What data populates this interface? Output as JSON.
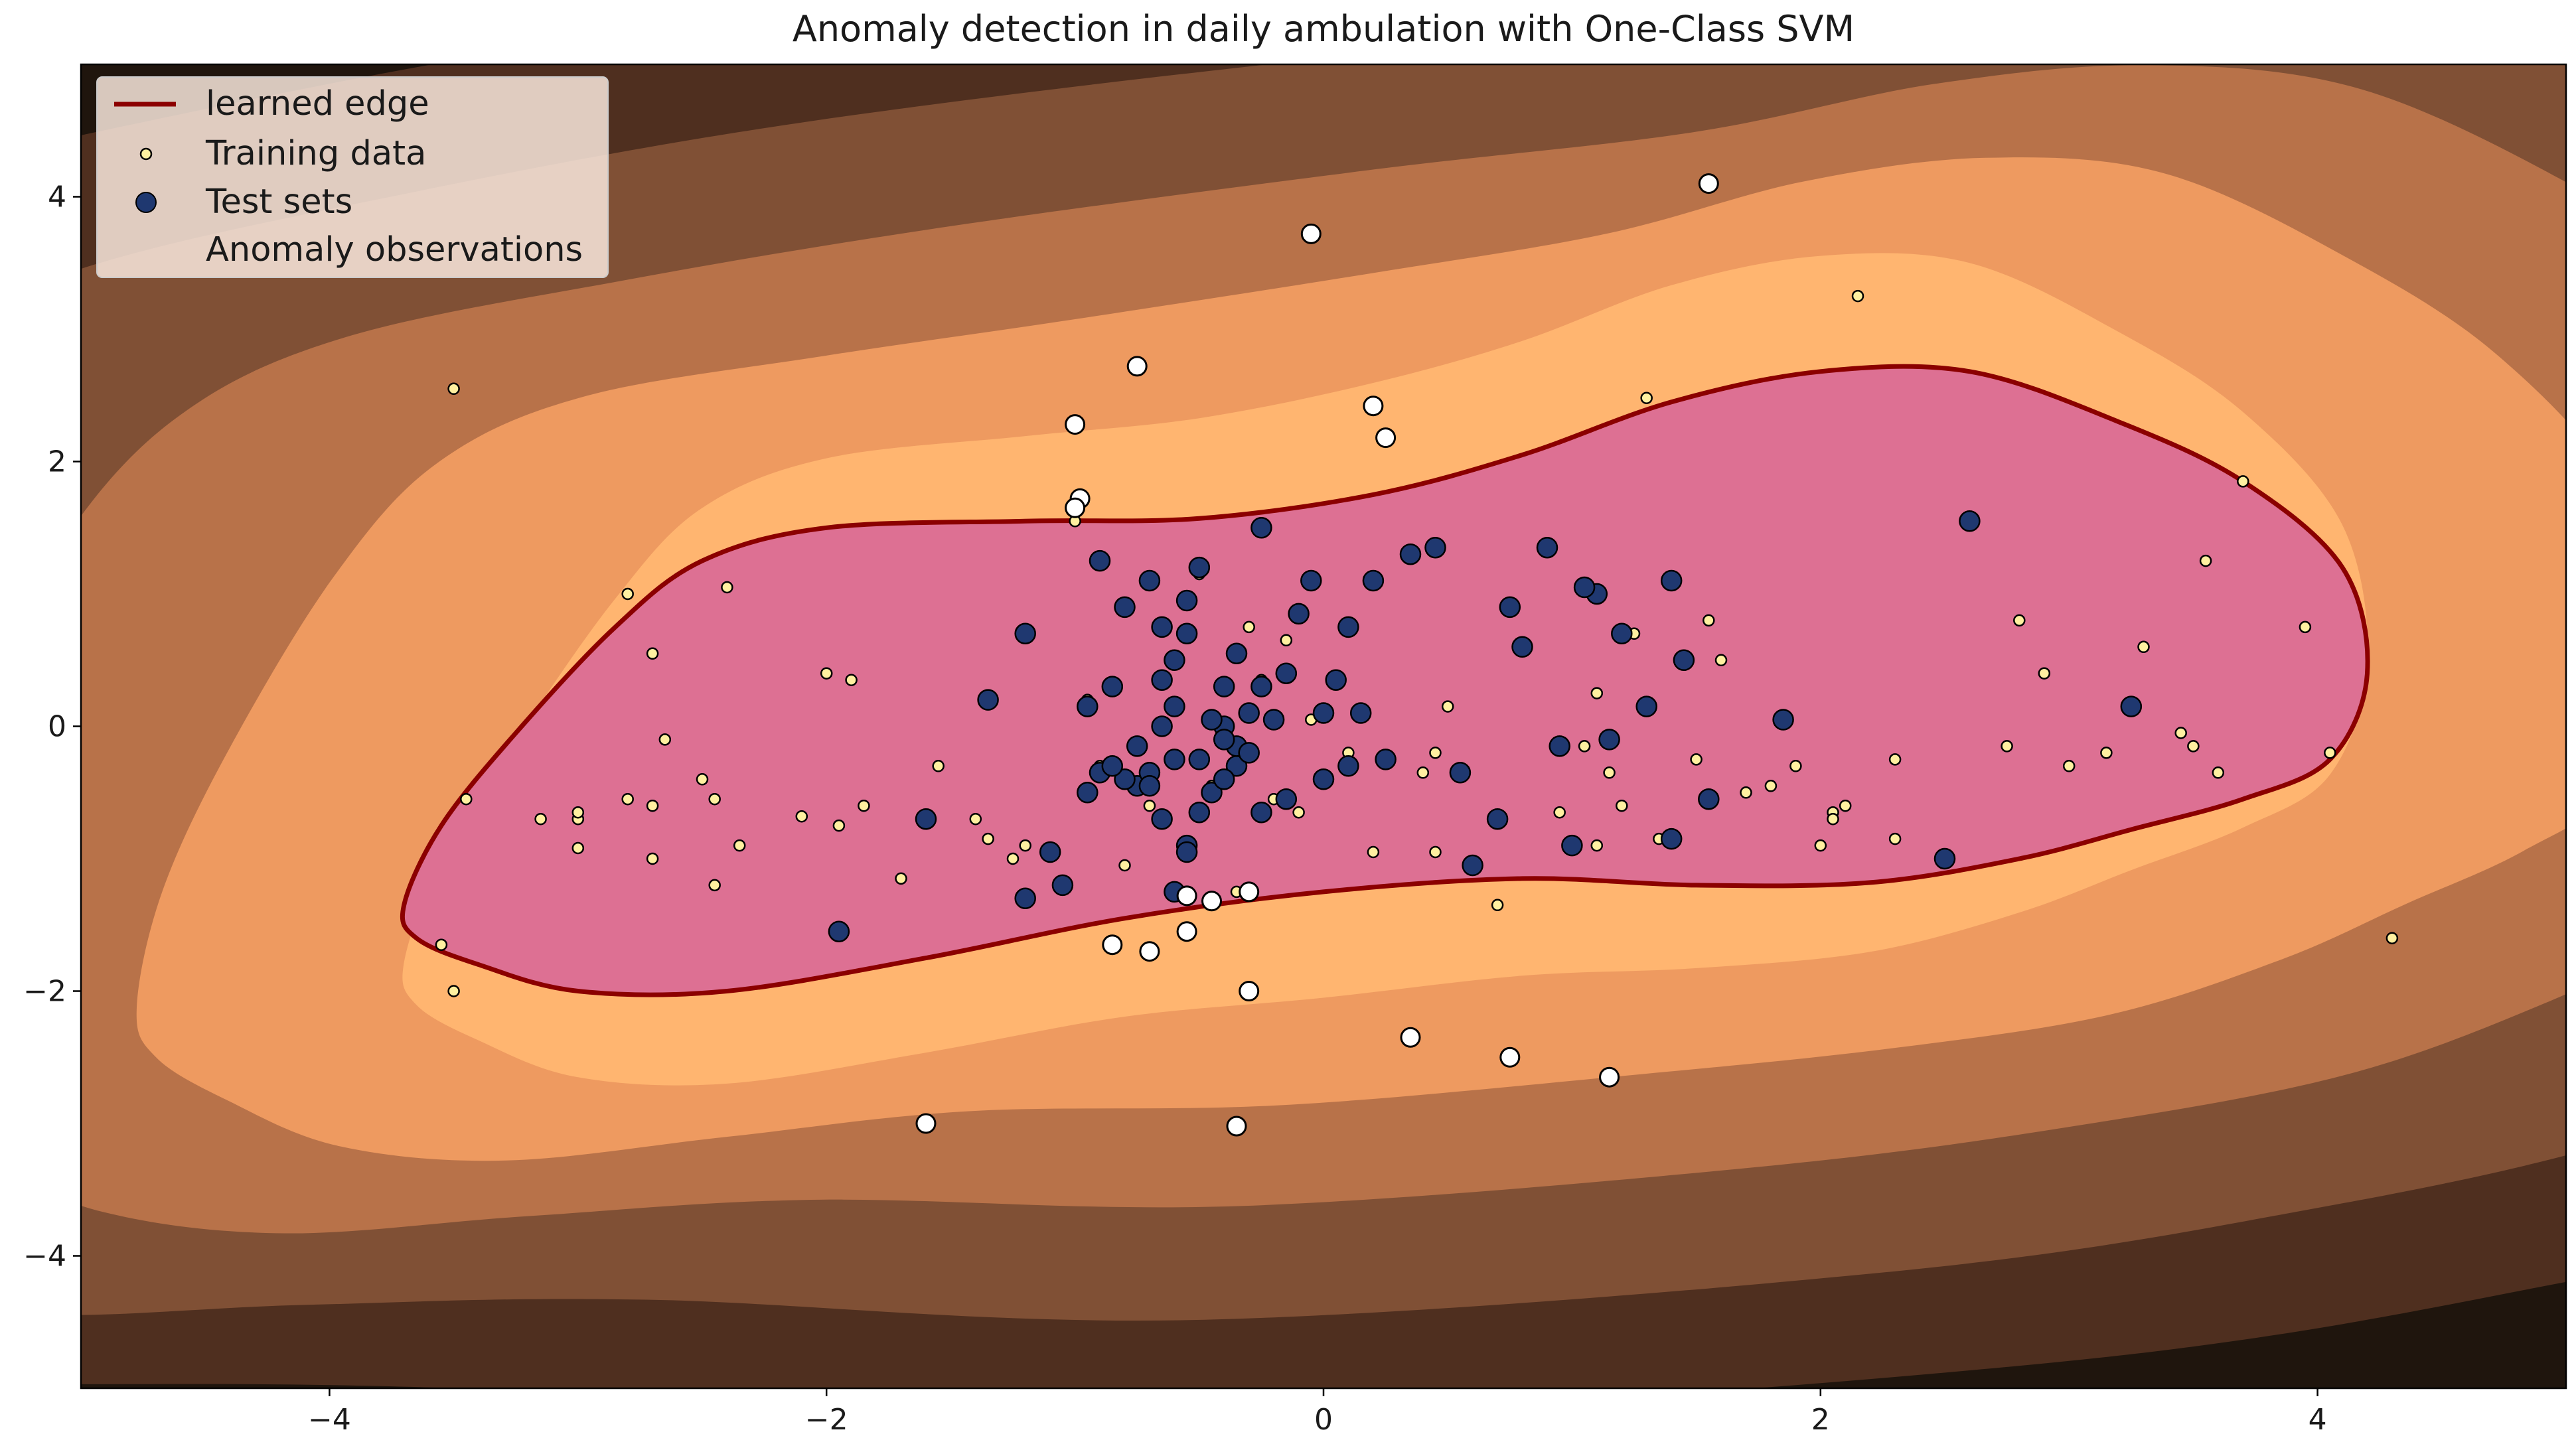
{
  "chart_data": {
    "type": "scatter",
    "title": "Anomaly detection in daily ambulation with One-Class SVM",
    "xlabel": "",
    "ylabel": "",
    "xlim": [
      -5,
      5
    ],
    "ylim": [
      -5,
      5
    ],
    "x_ticks": [
      -4,
      -2,
      0,
      2,
      4
    ],
    "y_ticks": [
      -4,
      -2,
      0,
      2,
      4
    ],
    "x_tick_labels": [
      "−4",
      "−2",
      "0",
      "2",
      "4"
    ],
    "y_tick_labels": [
      "−4",
      "−2",
      "0",
      "2",
      "4"
    ],
    "legend": {
      "position": "top-left",
      "entries": [
        "learned edge",
        "Training data",
        "Test sets",
        "Anomaly observations"
      ]
    },
    "colors": {
      "decision_region": "#dd7093",
      "edge": "#8b0000",
      "training": "#fff0a0",
      "test": "#1f3870",
      "anomaly": "#ffffff",
      "contour_levels": [
        "#ffb570",
        "#ee9a60",
        "#b87249",
        "#805035",
        "#4f2f1f",
        "#1f150d"
      ]
    },
    "learned_edge": [
      [
        -3.7,
        -1.35
      ],
      [
        -3.55,
        -0.75
      ],
      [
        -3.25,
        -0.05
      ],
      [
        -2.85,
        0.75
      ],
      [
        -2.5,
        1.25
      ],
      [
        -2.0,
        1.5
      ],
      [
        -1.2,
        1.55
      ],
      [
        -0.5,
        1.57
      ],
      [
        0.2,
        1.75
      ],
      [
        0.8,
        2.05
      ],
      [
        1.4,
        2.45
      ],
      [
        2.0,
        2.68
      ],
      [
        2.6,
        2.68
      ],
      [
        3.2,
        2.3
      ],
      [
        3.7,
        1.85
      ],
      [
        4.1,
        1.2
      ],
      [
        4.2,
        0.4
      ],
      [
        4.05,
        -0.25
      ],
      [
        3.7,
        -0.55
      ],
      [
        3.25,
        -0.78
      ],
      [
        2.8,
        -1.0
      ],
      [
        2.2,
        -1.18
      ],
      [
        1.5,
        -1.2
      ],
      [
        0.8,
        -1.15
      ],
      [
        0.0,
        -1.25
      ],
      [
        -0.8,
        -1.45
      ],
      [
        -1.6,
        -1.75
      ],
      [
        -2.4,
        -2.0
      ],
      [
        -3.0,
        -2.0
      ],
      [
        -3.4,
        -1.8
      ],
      [
        -3.65,
        -1.6
      ]
    ],
    "series": [
      {
        "name": "Training data",
        "points": [
          [
            -3.5,
            2.55
          ],
          [
            -2.4,
            1.05
          ],
          [
            -2.8,
            1.0
          ],
          [
            -2.7,
            0.55
          ],
          [
            -2.65,
            -0.1
          ],
          [
            -2.5,
            -0.4
          ],
          [
            -2.45,
            -0.55
          ],
          [
            -2.7,
            -0.6
          ],
          [
            -2.8,
            -0.55
          ],
          [
            -3.0,
            -0.7
          ],
          [
            -3.0,
            -0.65
          ],
          [
            -3.15,
            -0.7
          ],
          [
            -3.45,
            -0.55
          ],
          [
            -3.0,
            -0.92
          ],
          [
            -2.7,
            -1.0
          ],
          [
            -2.45,
            -1.2
          ],
          [
            -2.35,
            -0.9
          ],
          [
            -2.1,
            -0.68
          ],
          [
            -2.0,
            0.4
          ],
          [
            -1.9,
            0.35
          ],
          [
            -1.95,
            -0.75
          ],
          [
            -1.85,
            -0.6
          ],
          [
            -1.7,
            -1.15
          ],
          [
            -1.55,
            -0.3
          ],
          [
            -1.4,
            -0.7
          ],
          [
            -1.35,
            -0.85
          ],
          [
            -1.25,
            -1.0
          ],
          [
            -1.2,
            -0.9
          ],
          [
            -1.0,
            1.55
          ],
          [
            -0.95,
            0.2
          ],
          [
            -0.9,
            -0.3
          ],
          [
            -0.8,
            -1.05
          ],
          [
            -0.7,
            -0.6
          ],
          [
            -0.6,
            -0.25
          ],
          [
            -0.5,
            1.15
          ],
          [
            -0.45,
            -0.45
          ],
          [
            -0.3,
            0.75
          ],
          [
            -0.25,
            0.35
          ],
          [
            -0.2,
            -0.55
          ],
          [
            -0.15,
            0.65
          ],
          [
            -0.1,
            -0.65
          ],
          [
            -0.05,
            0.05
          ],
          [
            0.1,
            -0.2
          ],
          [
            0.2,
            -0.95
          ],
          [
            0.45,
            -0.95
          ],
          [
            0.4,
            -0.35
          ],
          [
            0.45,
            -0.2
          ],
          [
            0.5,
            0.15
          ],
          [
            0.95,
            -0.65
          ],
          [
            1.05,
            -0.15
          ],
          [
            1.1,
            0.25
          ],
          [
            1.15,
            -0.35
          ],
          [
            1.2,
            -0.6
          ],
          [
            1.25,
            0.7
          ],
          [
            1.3,
            2.48
          ],
          [
            1.35,
            -0.85
          ],
          [
            1.5,
            -0.25
          ],
          [
            1.55,
            0.8
          ],
          [
            1.6,
            0.5
          ],
          [
            1.7,
            -0.5
          ],
          [
            1.8,
            -0.45
          ],
          [
            1.9,
            -0.3
          ],
          [
            2.0,
            -0.9
          ],
          [
            2.05,
            -0.65
          ],
          [
            2.05,
            -0.7
          ],
          [
            2.1,
            -0.6
          ],
          [
            2.15,
            3.25
          ],
          [
            2.3,
            -0.25
          ],
          [
            2.3,
            -0.85
          ],
          [
            2.75,
            -0.15
          ],
          [
            2.8,
            0.8
          ],
          [
            2.9,
            0.4
          ],
          [
            3.0,
            -0.3
          ],
          [
            3.15,
            -0.2
          ],
          [
            3.3,
            0.6
          ],
          [
            3.45,
            -0.05
          ],
          [
            3.5,
            -0.15
          ],
          [
            3.55,
            1.25
          ],
          [
            3.6,
            -0.35
          ],
          [
            3.95,
            0.75
          ],
          [
            4.05,
            -0.2
          ],
          [
            3.7,
            1.85
          ],
          [
            4.3,
            -1.6
          ],
          [
            -3.5,
            -2.0
          ],
          [
            -3.55,
            -1.65
          ],
          [
            0.7,
            -1.35
          ],
          [
            1.1,
            -0.9
          ],
          [
            -0.35,
            -1.25
          ]
        ]
      },
      {
        "name": "Test sets",
        "points": [
          [
            -1.95,
            -1.55
          ],
          [
            -1.6,
            -0.7
          ],
          [
            -1.35,
            0.2
          ],
          [
            -1.2,
            0.7
          ],
          [
            -1.2,
            -1.3
          ],
          [
            -1.05,
            -1.2
          ],
          [
            -1.1,
            -0.95
          ],
          [
            -0.95,
            0.15
          ],
          [
            -0.9,
            1.25
          ],
          [
            -0.85,
            0.3
          ],
          [
            -0.8,
            0.9
          ],
          [
            -0.75,
            -0.45
          ],
          [
            -0.7,
            1.1
          ],
          [
            -0.65,
            0.35
          ],
          [
            -0.65,
            0.0
          ],
          [
            -0.6,
            0.5
          ],
          [
            -0.55,
            0.7
          ],
          [
            -0.55,
            0.95
          ],
          [
            -0.6,
            -0.25
          ],
          [
            -0.5,
            -0.25
          ],
          [
            -0.45,
            -0.5
          ],
          [
            -0.4,
            0.0
          ],
          [
            -0.35,
            -0.3
          ],
          [
            -0.35,
            -0.15
          ],
          [
            -0.3,
            -0.2
          ],
          [
            -0.25,
            -0.65
          ],
          [
            -0.25,
            1.5
          ],
          [
            -0.2,
            0.05
          ],
          [
            -0.15,
            0.4
          ],
          [
            -0.1,
            0.85
          ],
          [
            -0.05,
            1.1
          ],
          [
            0.0,
            -0.4
          ],
          [
            0.0,
            0.1
          ],
          [
            0.05,
            0.35
          ],
          [
            0.1,
            0.75
          ],
          [
            0.1,
            -0.3
          ],
          [
            0.15,
            0.1
          ],
          [
            0.25,
            -0.25
          ],
          [
            0.35,
            1.3
          ],
          [
            0.45,
            1.35
          ],
          [
            0.55,
            -0.35
          ],
          [
            0.7,
            -0.7
          ],
          [
            0.75,
            0.9
          ],
          [
            0.8,
            0.6
          ],
          [
            0.9,
            1.35
          ],
          [
            0.95,
            -0.15
          ],
          [
            1.1,
            1.0
          ],
          [
            1.05,
            1.05
          ],
          [
            1.15,
            -0.1
          ],
          [
            1.2,
            0.7
          ],
          [
            1.3,
            0.15
          ],
          [
            1.4,
            1.1
          ],
          [
            1.45,
            0.5
          ],
          [
            1.4,
            -0.85
          ],
          [
            1.55,
            -0.55
          ],
          [
            -0.65,
            -0.7
          ],
          [
            -0.55,
            -0.9
          ],
          [
            -0.4,
            -0.4
          ],
          [
            -0.7,
            -0.35
          ],
          [
            -0.6,
            0.15
          ],
          [
            -0.45,
            0.05
          ],
          [
            -0.5,
            1.2
          ],
          [
            -0.35,
            0.55
          ],
          [
            -0.15,
            -0.55
          ],
          [
            0.6,
            -1.05
          ],
          [
            1.0,
            -0.9
          ],
          [
            1.85,
            0.05
          ],
          [
            2.5,
            -1.0
          ],
          [
            2.6,
            1.55
          ],
          [
            3.25,
            0.15
          ],
          [
            -0.8,
            -0.4
          ],
          [
            -0.75,
            -0.15
          ],
          [
            -0.9,
            -0.35
          ],
          [
            -0.95,
            -0.5
          ],
          [
            -0.85,
            -0.3
          ],
          [
            -0.5,
            -0.65
          ],
          [
            -0.4,
            -0.1
          ],
          [
            -0.3,
            0.1
          ],
          [
            -0.25,
            0.3
          ],
          [
            0.2,
            1.1
          ],
          [
            -0.65,
            0.75
          ],
          [
            -0.6,
            -1.25
          ],
          [
            -0.7,
            -0.45
          ],
          [
            -0.55,
            -0.95
          ],
          [
            -0.4,
            0.3
          ]
        ]
      },
      {
        "name": "Anomaly observations",
        "points": [
          [
            1.55,
            4.1
          ],
          [
            -0.05,
            3.72
          ],
          [
            -0.75,
            2.72
          ],
          [
            -1.0,
            2.28
          ],
          [
            0.2,
            2.42
          ],
          [
            0.25,
            2.18
          ],
          [
            -0.98,
            1.72
          ],
          [
            -1.0,
            1.65
          ],
          [
            -0.55,
            -1.28
          ],
          [
            -0.45,
            -1.32
          ],
          [
            -0.3,
            -1.25
          ],
          [
            -0.85,
            -1.65
          ],
          [
            -0.7,
            -1.7
          ],
          [
            -0.55,
            -1.55
          ],
          [
            -0.3,
            -2.0
          ],
          [
            0.35,
            -2.35
          ],
          [
            0.75,
            -2.5
          ],
          [
            1.15,
            -2.65
          ],
          [
            -1.6,
            -3.0
          ],
          [
            -0.35,
            -3.02
          ]
        ]
      }
    ]
  }
}
